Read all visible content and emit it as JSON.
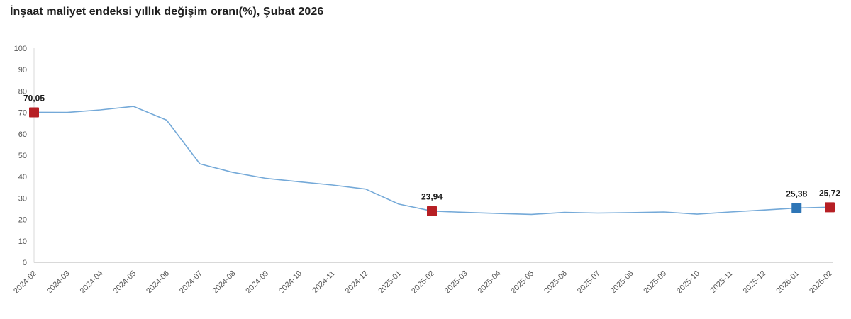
{
  "chart_data": {
    "type": "line",
    "title": "İnşaat maliyet endeksi yıllık değişim oranı(%), Şubat 2026",
    "xlabel": "",
    "ylabel": "",
    "ylim": [
      0,
      100
    ],
    "ytick_step": 10,
    "grid": false,
    "legend": "none",
    "decimal_separator": ",",
    "categories": [
      "2024-02",
      "2024-03",
      "2024-04",
      "2024-05",
      "2024-06",
      "2024-07",
      "2024-08",
      "2024-09",
      "2024-10",
      "2024-11",
      "2024-12",
      "2025-01",
      "2025-02",
      "2025-03",
      "2025-04",
      "2025-05",
      "2025-06",
      "2025-07",
      "2025-08",
      "2025-09",
      "2025-10",
      "2025-11",
      "2025-12",
      "2026-01",
      "2026-02"
    ],
    "values": [
      70.05,
      70.0,
      71.2,
      72.8,
      66.4,
      46.0,
      42.0,
      39.2,
      37.6,
      36.1,
      34.2,
      27.2,
      23.94,
      23.3,
      22.8,
      22.4,
      23.3,
      23.0,
      23.2,
      23.5,
      22.5,
      23.5,
      24.4,
      25.38,
      25.72
    ],
    "annotations": [
      {
        "category": "2024-02",
        "value": 70.05,
        "label": "70,05",
        "marker": "red"
      },
      {
        "category": "2025-02",
        "value": 23.94,
        "label": "23,94",
        "marker": "red"
      },
      {
        "category": "2026-01",
        "value": 25.38,
        "label": "25,38",
        "marker": "blue"
      },
      {
        "category": "2026-02",
        "value": 25.72,
        "label": "25,72",
        "marker": "red"
      }
    ],
    "colors": {
      "line": "#74a9d8",
      "marker_red": "#b61f24",
      "marker_blue": "#2e75b6",
      "axis_line": "#d9d9d9",
      "tick_text": "#555555",
      "title_text": "#1f1f1f",
      "label_text": "#1a1a1a"
    }
  }
}
